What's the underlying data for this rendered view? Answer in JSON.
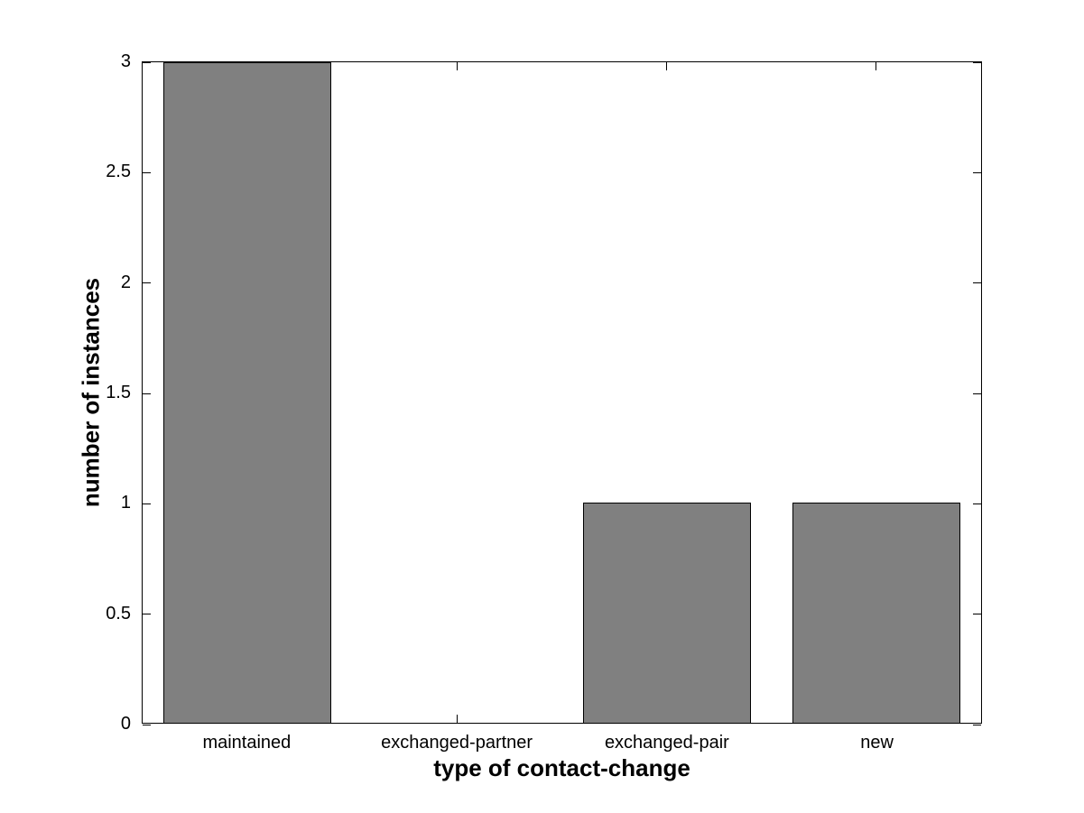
{
  "chart_data": {
    "type": "bar",
    "title": "",
    "xlabel": "type of contact-change",
    "ylabel": "number of instances",
    "categories": [
      "maintained",
      "exchanged-partner",
      "exchanged-pair",
      "new"
    ],
    "values": [
      3,
      0,
      1,
      1
    ],
    "ylim": [
      0,
      3
    ],
    "ytick_values": [
      0,
      0.5,
      1,
      1.5,
      2,
      2.5,
      3
    ],
    "ytick_labels": [
      "0",
      "0.5",
      "1",
      "1.5",
      "2",
      "2.5",
      "3"
    ],
    "grid": false,
    "legend": null,
    "bar_width_fraction": 0.8,
    "colors": {
      "bar_fill": "#808080",
      "bar_edge": "#000000",
      "axis": "#000000",
      "background": "#ffffff",
      "text": "#000000"
    }
  }
}
